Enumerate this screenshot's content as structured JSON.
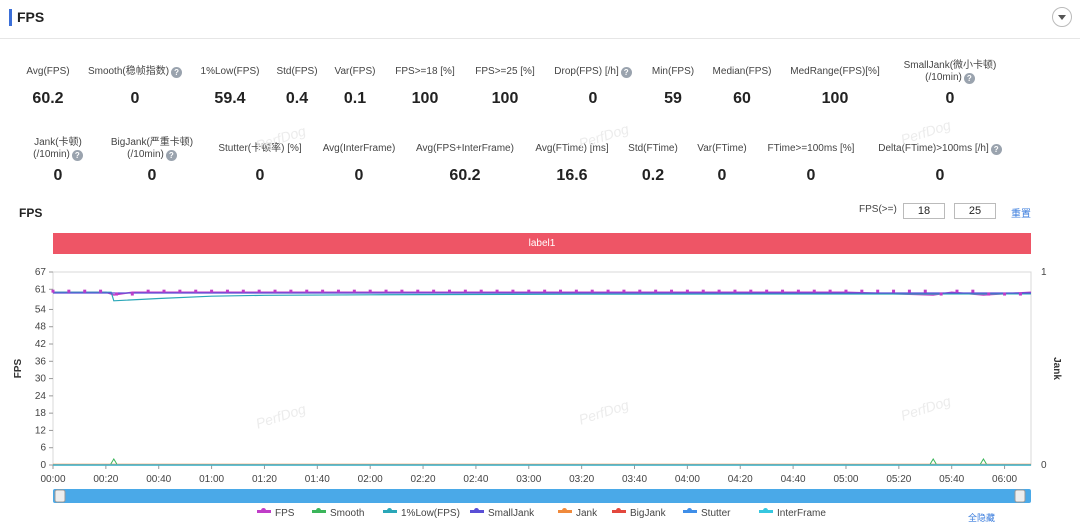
{
  "header": {
    "title": "FPS"
  },
  "stats_row1": [
    {
      "label": "Avg(FPS)",
      "value": "60.2",
      "help": false
    },
    {
      "label": "Smooth(稳帧指数)",
      "value": "0",
      "help": true
    },
    {
      "label": "1%Low(FPS)",
      "value": "59.4",
      "help": false
    },
    {
      "label": "Std(FPS)",
      "value": "0.4",
      "help": false
    },
    {
      "label": "Var(FPS)",
      "value": "0.1",
      "help": false
    },
    {
      "label": "FPS>=18 [%]",
      "value": "100",
      "help": false
    },
    {
      "label": "FPS>=25 [%]",
      "value": "100",
      "help": false
    },
    {
      "label": "Drop(FPS) [/h]",
      "value": "0",
      "help": true
    },
    {
      "label": "Min(FPS)",
      "value": "59",
      "help": false
    },
    {
      "label": "Median(FPS)",
      "value": "60",
      "help": false
    },
    {
      "label": "MedRange(FPS)[%]",
      "value": "100",
      "help": false
    },
    {
      "label": "SmallJank(微小卡顿)",
      "label2": "(/10min)",
      "value": "0",
      "help": true
    }
  ],
  "stats_row2": [
    {
      "label": "Jank(卡顿)",
      "label2": "(/10min)",
      "value": "0",
      "help": true
    },
    {
      "label": "BigJank(严重卡顿)",
      "label2": "(/10min)",
      "value": "0",
      "help": true
    },
    {
      "label": "Stutter(卡顿率) [%]",
      "value": "0",
      "help": false
    },
    {
      "label": "Avg(InterFrame)",
      "value": "0",
      "help": false
    },
    {
      "label": "Avg(FPS+InterFrame)",
      "value": "60.2",
      "help": false
    },
    {
      "label": "Avg(FTime) [ms]",
      "value": "16.6",
      "help": false
    },
    {
      "label": "Std(FTime)",
      "value": "0.2",
      "help": false
    },
    {
      "label": "Var(FTime)",
      "value": "0",
      "help": false
    },
    {
      "label": "FTime>=100ms [%]",
      "value": "0",
      "help": false
    },
    {
      "label": "Delta(FTime)>100ms [/h]",
      "value": "0",
      "help": true
    }
  ],
  "watermark": "PerfDog",
  "controls": {
    "fps_label": "FPS(>=)",
    "threshold1": "18",
    "threshold2": "25",
    "reset": "重置"
  },
  "chart_data": {
    "type": "line",
    "title": "FPS",
    "band_label": "label1",
    "ylabel": "FPS",
    "y2label": "Jank",
    "ylim": [
      0,
      67
    ],
    "y2lim": [
      0,
      1
    ],
    "yticks": [
      0,
      6,
      12,
      18,
      24,
      30,
      36,
      42,
      48,
      54,
      61,
      67
    ],
    "y2ticks": [
      0,
      1
    ],
    "xticks": [
      "00:00",
      "00:20",
      "00:40",
      "01:00",
      "01:20",
      "01:40",
      "02:00",
      "02:20",
      "02:40",
      "03:00",
      "03:20",
      "03:40",
      "04:00",
      "04:20",
      "04:40",
      "05:00",
      "05:20",
      "05:40",
      "06:00"
    ],
    "xrange_s": [
      0,
      370
    ],
    "series": [
      {
        "name": "FPS",
        "color": "#c03dc8",
        "points": [
          [
            0,
            60
          ],
          [
            20,
            60
          ],
          [
            23,
            59
          ],
          [
            30,
            60
          ],
          [
            100,
            60
          ],
          [
            200,
            60
          ],
          [
            300,
            60
          ],
          [
            333,
            59
          ],
          [
            340,
            60
          ],
          [
            352,
            59
          ],
          [
            370,
            60
          ]
        ]
      },
      {
        "name": "Smooth",
        "color": "#3bb55a",
        "points": [
          [
            0,
            0
          ],
          [
            370,
            0
          ]
        ]
      },
      {
        "name": "1%Low(FPS)",
        "color": "#2aa7b8",
        "points": [
          [
            0,
            60
          ],
          [
            22,
            60
          ],
          [
            23,
            57
          ],
          [
            40,
            57.8
          ],
          [
            60,
            58.6
          ],
          [
            80,
            58.9
          ],
          [
            120,
            59.1
          ],
          [
            200,
            59.3
          ],
          [
            370,
            59.4
          ]
        ]
      },
      {
        "name": "SmallJank",
        "color": "#5a4fd6",
        "points": [
          [
            0,
            59.7
          ],
          [
            370,
            59.7
          ]
        ]
      },
      {
        "name": "Jank",
        "color": "#f08a3c",
        "points": [
          [
            0,
            0.2
          ],
          [
            370,
            0.2
          ]
        ]
      },
      {
        "name": "BigJank",
        "color": "#e3473d",
        "points": [
          [
            0,
            0
          ],
          [
            370,
            0
          ]
        ]
      },
      {
        "name": "Stutter",
        "color": "#3f8ee8",
        "points": [
          [
            0,
            0
          ],
          [
            370,
            0
          ]
        ]
      },
      {
        "name": "InterFrame",
        "color": "#36c7e0",
        "points": [
          [
            0,
            0
          ],
          [
            370,
            0
          ]
        ]
      }
    ],
    "smooth_markers_s": [
      23,
      333,
      352
    ]
  },
  "scroll": {
    "color": "#4aa9e8"
  },
  "legend_hide_all": "全隐藏"
}
